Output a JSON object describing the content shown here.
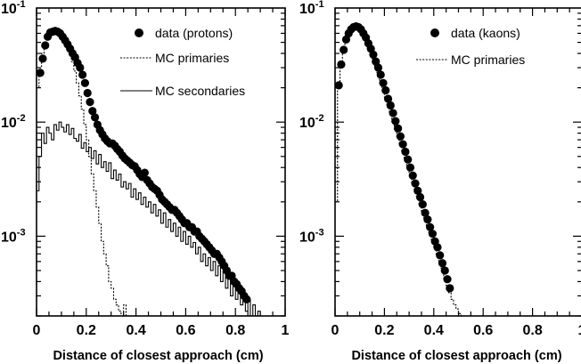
{
  "chart_data": [
    {
      "type": "scatter",
      "xlabel": "Distance of closest approach (cm)",
      "ylabel": "",
      "xlim": [
        0,
        1
      ],
      "ylim": [
        0.0002,
        0.1
      ],
      "y_scale": "log",
      "x_ticks": [
        "0",
        "0.2",
        "0.4",
        "0.6",
        "0.8",
        "1"
      ],
      "y_ticks": [
        {
          "value": 0.1,
          "base": "10",
          "exp": "-1"
        },
        {
          "value": 0.01,
          "base": "10",
          "exp": "-2"
        },
        {
          "value": 0.001,
          "base": "10",
          "exp": "-3"
        }
      ],
      "legend_position": "top-right",
      "series": [
        {
          "name": "data (protons)",
          "style": "markers",
          "x": [
            0.015,
            0.025,
            0.035,
            0.045,
            0.055,
            0.065,
            0.075,
            0.085,
            0.095,
            0.105,
            0.115,
            0.125,
            0.135,
            0.145,
            0.155,
            0.165,
            0.175,
            0.185,
            0.195,
            0.205,
            0.215,
            0.225,
            0.235,
            0.245,
            0.255,
            0.265,
            0.275,
            0.285,
            0.295,
            0.305,
            0.315,
            0.325,
            0.335,
            0.345,
            0.355,
            0.365,
            0.375,
            0.385,
            0.395,
            0.405,
            0.415,
            0.425,
            0.435,
            0.445,
            0.455,
            0.465,
            0.475,
            0.485,
            0.495,
            0.505,
            0.515,
            0.525,
            0.535,
            0.545,
            0.555,
            0.565,
            0.575,
            0.585,
            0.595,
            0.605,
            0.615,
            0.625,
            0.635,
            0.645,
            0.655,
            0.665,
            0.675,
            0.685,
            0.695,
            0.705,
            0.715,
            0.725,
            0.735,
            0.745,
            0.755,
            0.765,
            0.775,
            0.785,
            0.795,
            0.805,
            0.815,
            0.825,
            0.835,
            0.845
          ],
          "y": [
            0.027,
            0.036,
            0.047,
            0.056,
            0.061,
            0.062,
            0.063,
            0.062,
            0.06,
            0.056,
            0.052,
            0.048,
            0.044,
            0.04,
            0.037,
            0.033,
            0.03,
            0.026,
            0.022,
            0.018,
            0.015,
            0.0125,
            0.011,
            0.0095,
            0.0085,
            0.0078,
            0.0072,
            0.0068,
            0.0065,
            0.0065,
            0.0062,
            0.0058,
            0.0055,
            0.0051,
            0.0048,
            0.0046,
            0.0044,
            0.0042,
            0.0041,
            0.0038,
            0.0035,
            0.0033,
            0.0036,
            0.0031,
            0.0029,
            0.0027,
            0.0026,
            0.0025,
            0.0023,
            0.0021,
            0.002,
            0.0019,
            0.0018,
            0.0017,
            0.0017,
            0.0016,
            0.0015,
            0.0014,
            0.0013,
            0.0013,
            0.0012,
            0.0012,
            0.0011,
            0.0011,
            0.001,
            0.00095,
            0.0009,
            0.00085,
            0.0008,
            0.00075,
            0.0007,
            0.0007,
            0.00065,
            0.0006,
            0.00055,
            0.0005,
            0.00045,
            0.00045,
            0.0004,
            0.00038,
            0.00035,
            0.00033,
            0.0003,
            0.00028
          ]
        },
        {
          "name": "MC primaries",
          "style": "dotted-step",
          "x": [
            0,
            0.01,
            0.02,
            0.03,
            0.04,
            0.05,
            0.06,
            0.07,
            0.08,
            0.09,
            0.1,
            0.11,
            0.12,
            0.13,
            0.14,
            0.15,
            0.16,
            0.17,
            0.18,
            0.19,
            0.2,
            0.21,
            0.22,
            0.23,
            0.24,
            0.25,
            0.26,
            0.27,
            0.28,
            0.29,
            0.3,
            0.31,
            0.32,
            0.33,
            0.34,
            0.35,
            0.36,
            0.37,
            0.38,
            0.39,
            0.4,
            0.41,
            0.42,
            0.43,
            0.44,
            0.45,
            0.46,
            0.47,
            0.48
          ],
          "y": [
            0.02,
            0.03,
            0.04,
            0.05,
            0.056,
            0.06,
            0.062,
            0.063,
            0.062,
            0.06,
            0.056,
            0.05,
            0.045,
            0.04,
            0.034,
            0.028,
            0.022,
            0.017,
            0.013,
            0.0095,
            0.007,
            0.005,
            0.0035,
            0.0025,
            0.0018,
            0.0013,
            0.0009,
            0.0007,
            0.00055,
            0.0004,
            0.00035,
            0.00028,
            0.00025,
            0.00022,
            0.0002,
            0.00025,
            0.0002,
            0.0002,
            0.0002,
            0.0002,
            0.0002,
            0.0002,
            0.0002,
            0.0002,
            0.0002,
            0.0002,
            0.0002,
            0.0002,
            0.0002
          ]
        },
        {
          "name": "MC secondaries",
          "style": "solid-step",
          "x": [
            0,
            0.01,
            0.02,
            0.03,
            0.04,
            0.05,
            0.06,
            0.07,
            0.08,
            0.09,
            0.1,
            0.11,
            0.12,
            0.13,
            0.14,
            0.15,
            0.16,
            0.17,
            0.18,
            0.19,
            0.2,
            0.21,
            0.22,
            0.23,
            0.24,
            0.25,
            0.26,
            0.27,
            0.28,
            0.29,
            0.3,
            0.31,
            0.32,
            0.33,
            0.34,
            0.35,
            0.36,
            0.37,
            0.38,
            0.39,
            0.4,
            0.41,
            0.42,
            0.43,
            0.44,
            0.45,
            0.46,
            0.47,
            0.48,
            0.49,
            0.5,
            0.51,
            0.52,
            0.53,
            0.54,
            0.55,
            0.56,
            0.57,
            0.58,
            0.59,
            0.6,
            0.61,
            0.62,
            0.63,
            0.64,
            0.65,
            0.66,
            0.67,
            0.68,
            0.69,
            0.7,
            0.71,
            0.72,
            0.73,
            0.74,
            0.75,
            0.76,
            0.77,
            0.78,
            0.79,
            0.8,
            0.81,
            0.82,
            0.83,
            0.84,
            0.85,
            0.86,
            0.87,
            0.88,
            0.89,
            0.9,
            0.91,
            0.92,
            0.93,
            0.94,
            0.95,
            0.96,
            0.97,
            0.98,
            0.99
          ],
          "y": [
            0.0025,
            0.005,
            0.008,
            0.0065,
            0.009,
            0.008,
            0.007,
            0.0095,
            0.0085,
            0.01,
            0.009,
            0.0082,
            0.0095,
            0.0078,
            0.0088,
            0.0072,
            0.0068,
            0.0078,
            0.0059,
            0.0066,
            0.0055,
            0.006,
            0.0048,
            0.0056,
            0.0043,
            0.0052,
            0.004,
            0.0045,
            0.0037,
            0.0044,
            0.0032,
            0.0038,
            0.0031,
            0.0035,
            0.0027,
            0.003,
            0.0026,
            0.0029,
            0.0022,
            0.0026,
            0.0021,
            0.0024,
            0.0019,
            0.0022,
            0.0018,
            0.002,
            0.0016,
            0.0019,
            0.0015,
            0.0017,
            0.0013,
            0.0016,
            0.0012,
            0.0014,
            0.0011,
            0.0013,
            0.001,
            0.0012,
            0.0009,
            0.0011,
            0.00085,
            0.001,
            0.0008,
            0.00088,
            0.0007,
            0.0008,
            0.0006,
            0.0007,
            0.00055,
            0.00065,
            0.0005,
            0.0006,
            0.00045,
            0.00055,
            0.0004,
            0.0005,
            0.00035,
            0.00045,
            0.0003,
            0.0004,
            0.00028,
            0.00035,
            0.00025,
            0.0003,
            0.00022,
            0.00028,
            0.0002,
            0.00025,
            0.0002,
            0.00022,
            0.0002,
            0.0002,
            0.0002,
            0.0002,
            0.0002,
            0.0002,
            0.0002,
            0.0002,
            0.0002,
            0.0002
          ]
        }
      ]
    },
    {
      "type": "scatter",
      "xlabel": "Distance of closest approach (cm)",
      "ylabel": "",
      "xlim": [
        0,
        1
      ],
      "ylim": [
        0.0002,
        0.1
      ],
      "y_scale": "log",
      "x_ticks": [
        "0",
        "0.2",
        "0.4",
        "0.6",
        "0.8",
        "1"
      ],
      "y_ticks": [
        {
          "value": 0.1,
          "base": "10",
          "exp": "-1"
        },
        {
          "value": 0.01,
          "base": "10",
          "exp": "-2"
        },
        {
          "value": 0.001,
          "base": "10",
          "exp": "-3"
        }
      ],
      "legend_position": "top-right",
      "series": [
        {
          "name": "data (kaons)",
          "style": "markers",
          "x": [
            0.015,
            0.025,
            0.035,
            0.045,
            0.055,
            0.065,
            0.075,
            0.085,
            0.095,
            0.105,
            0.115,
            0.125,
            0.135,
            0.145,
            0.155,
            0.165,
            0.175,
            0.185,
            0.195,
            0.205,
            0.215,
            0.225,
            0.235,
            0.245,
            0.255,
            0.265,
            0.275,
            0.285,
            0.295,
            0.305,
            0.315,
            0.325,
            0.335,
            0.345,
            0.355,
            0.365,
            0.375,
            0.385,
            0.395,
            0.405,
            0.415,
            0.425,
            0.435,
            0.445,
            0.455,
            0.465
          ],
          "y": [
            0.021,
            0.032,
            0.043,
            0.053,
            0.06,
            0.065,
            0.068,
            0.069,
            0.068,
            0.065,
            0.06,
            0.055,
            0.049,
            0.044,
            0.039,
            0.034,
            0.03,
            0.026,
            0.022,
            0.019,
            0.016,
            0.014,
            0.012,
            0.0102,
            0.0088,
            0.0075,
            0.0064,
            0.0055,
            0.0047,
            0.004,
            0.0034,
            0.0029,
            0.0025,
            0.0022,
            0.0019,
            0.0016,
            0.0014,
            0.0012,
            0.00105,
            0.0009,
            0.0008,
            0.00068,
            0.00058,
            0.0005,
            0.00042,
            0.00035
          ]
        },
        {
          "name": "MC primaries",
          "style": "dotted-step",
          "x": [
            0,
            0.01,
            0.02,
            0.03,
            0.04,
            0.05,
            0.06,
            0.07,
            0.08,
            0.09,
            0.1,
            0.11,
            0.12,
            0.13,
            0.14,
            0.15,
            0.16,
            0.17,
            0.18,
            0.19,
            0.2,
            0.21,
            0.22,
            0.23,
            0.24,
            0.25,
            0.26,
            0.27,
            0.28,
            0.29,
            0.3,
            0.31,
            0.32,
            0.33,
            0.34,
            0.35,
            0.36,
            0.37,
            0.38,
            0.39,
            0.4,
            0.41,
            0.42,
            0.43,
            0.44,
            0.45,
            0.46,
            0.47,
            0.48,
            0.49,
            0.5,
            0.51
          ],
          "y": [
            0.002,
            0.022,
            0.034,
            0.046,
            0.055,
            0.062,
            0.066,
            0.068,
            0.069,
            0.067,
            0.063,
            0.058,
            0.052,
            0.046,
            0.041,
            0.036,
            0.031,
            0.027,
            0.023,
            0.0195,
            0.0165,
            0.014,
            0.012,
            0.0101,
            0.0087,
            0.0075,
            0.0064,
            0.0055,
            0.0047,
            0.0041,
            0.0035,
            0.003,
            0.0026,
            0.0022,
            0.0019,
            0.0016,
            0.0014,
            0.0012,
            0.00105,
            0.0009,
            0.00078,
            0.00068,
            0.00058,
            0.0005,
            0.00043,
            0.00037,
            0.00032,
            0.00028,
            0.00025,
            0.00023,
            0.00021,
            0.0002
          ]
        }
      ]
    }
  ]
}
